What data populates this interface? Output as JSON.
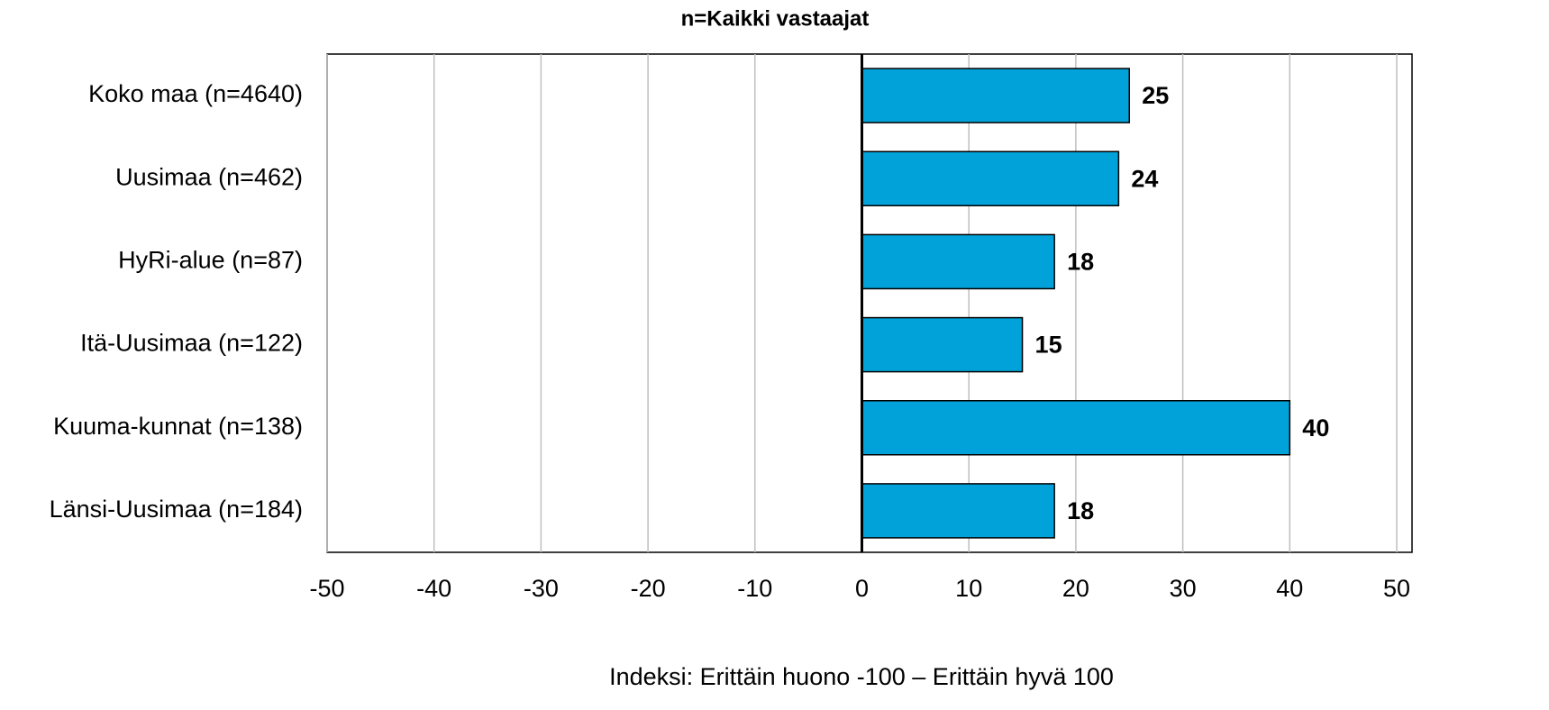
{
  "chart_data": {
    "type": "bar",
    "orientation": "horizontal",
    "title": "n=Kaikki vastaajat",
    "xlabel": "Indeksi: Erittäin huono -100 – Erittäin hyvä 100",
    "categories": [
      "Koko maa (n=4640)",
      "Uusimaa (n=462)",
      "HyRi-alue (n=87)",
      "Itä-Uusimaa (n=122)",
      "Kuuma-kunnat (n=138)",
      "Länsi-Uusimaa (n=184)"
    ],
    "values": [
      25,
      24,
      18,
      15,
      40,
      18
    ],
    "color": "#00a2d9",
    "xlim": [
      -50,
      50
    ],
    "xticks": [
      -50,
      -40,
      -30,
      -20,
      -10,
      0,
      10,
      20,
      30,
      40,
      50
    ],
    "grid": true
  }
}
